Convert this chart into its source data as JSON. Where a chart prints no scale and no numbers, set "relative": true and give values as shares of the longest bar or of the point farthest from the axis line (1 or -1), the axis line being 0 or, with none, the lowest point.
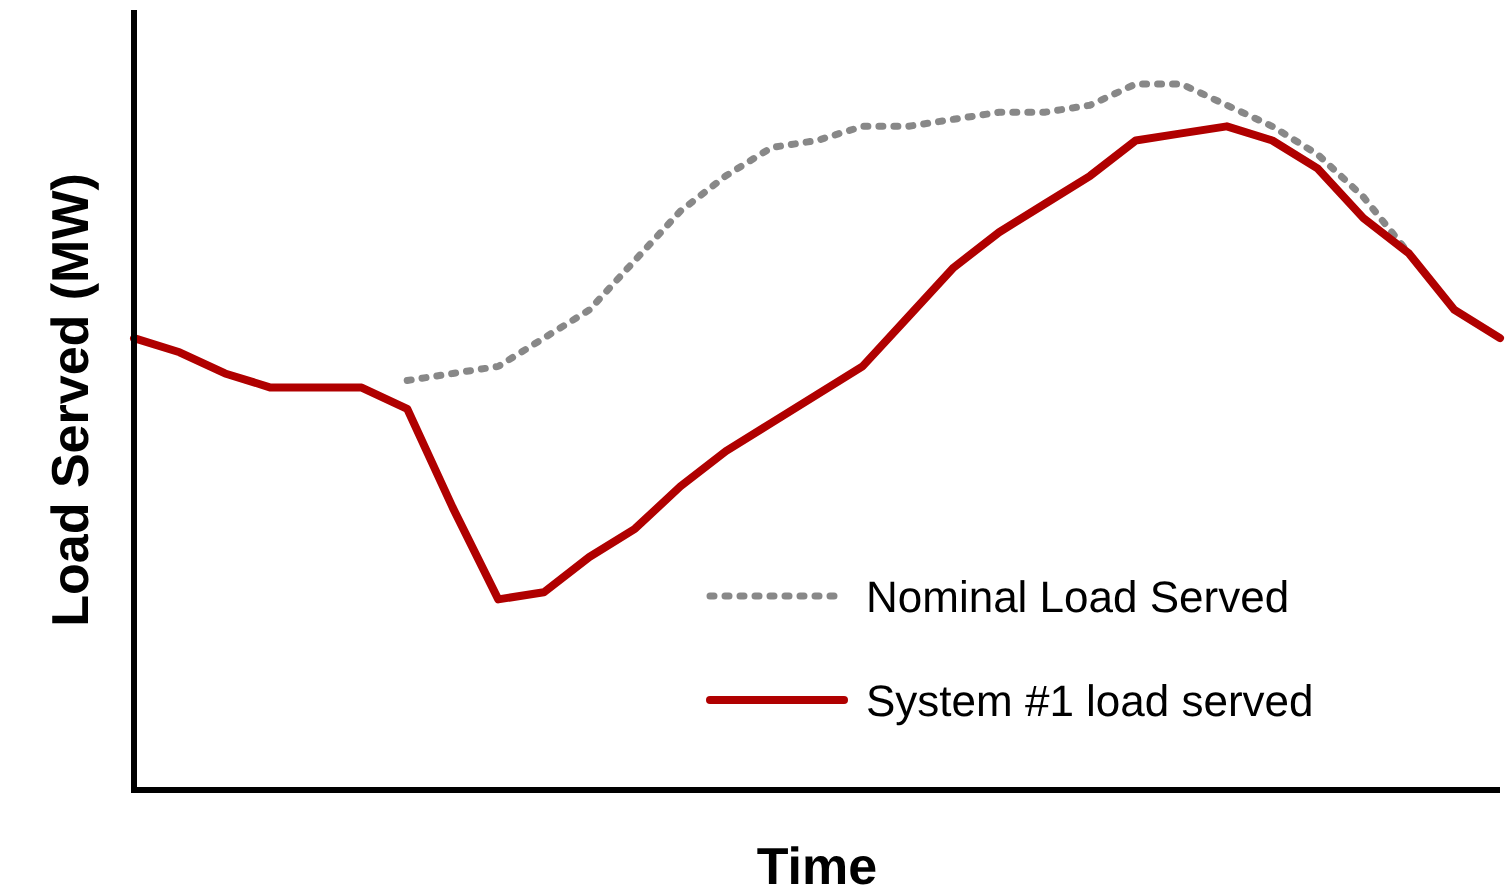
{
  "chart_data": {
    "type": "line",
    "relative": true,
    "xlabel": "Time",
    "ylabel": "Load Served (MW)",
    "legend": "bottom right",
    "categories": [
      null,
      null,
      null,
      null,
      null,
      null,
      null,
      null,
      null,
      null,
      null,
      null,
      null,
      null,
      null,
      null,
      null,
      null,
      null,
      null,
      null,
      null,
      null,
      null,
      null,
      null,
      null,
      null,
      null,
      null,
      null
    ],
    "series": [
      {
        "name": "Nominal Load Served",
        "color": "#888888",
        "line_style": "dotted",
        "values": [
          null,
          null,
          null,
          null,
          null,
          null,
          0.58,
          0.59,
          0.6,
          0.64,
          0.68,
          0.75,
          0.82,
          0.87,
          0.91,
          0.92,
          0.94,
          0.94,
          0.95,
          0.96,
          0.96,
          0.97,
          1,
          1,
          0.97,
          0.94,
          0.9,
          0.84,
          0.76,
          null,
          null
        ]
      },
      {
        "name": "System #1 load served",
        "color": "#b00000",
        "line_style": "solid",
        "values": [
          0.64,
          0.62,
          0.59,
          0.57,
          0.57,
          0.57,
          0.54,
          0.4,
          0.27,
          0.28,
          0.33,
          0.37,
          0.43,
          0.48,
          0.52,
          0.56,
          0.6,
          0.67,
          0.74,
          0.79,
          0.83,
          0.87,
          0.92,
          0.93,
          0.94,
          0.92,
          0.88,
          0.81,
          0.76,
          0.68,
          0.64
        ]
      }
    ]
  }
}
